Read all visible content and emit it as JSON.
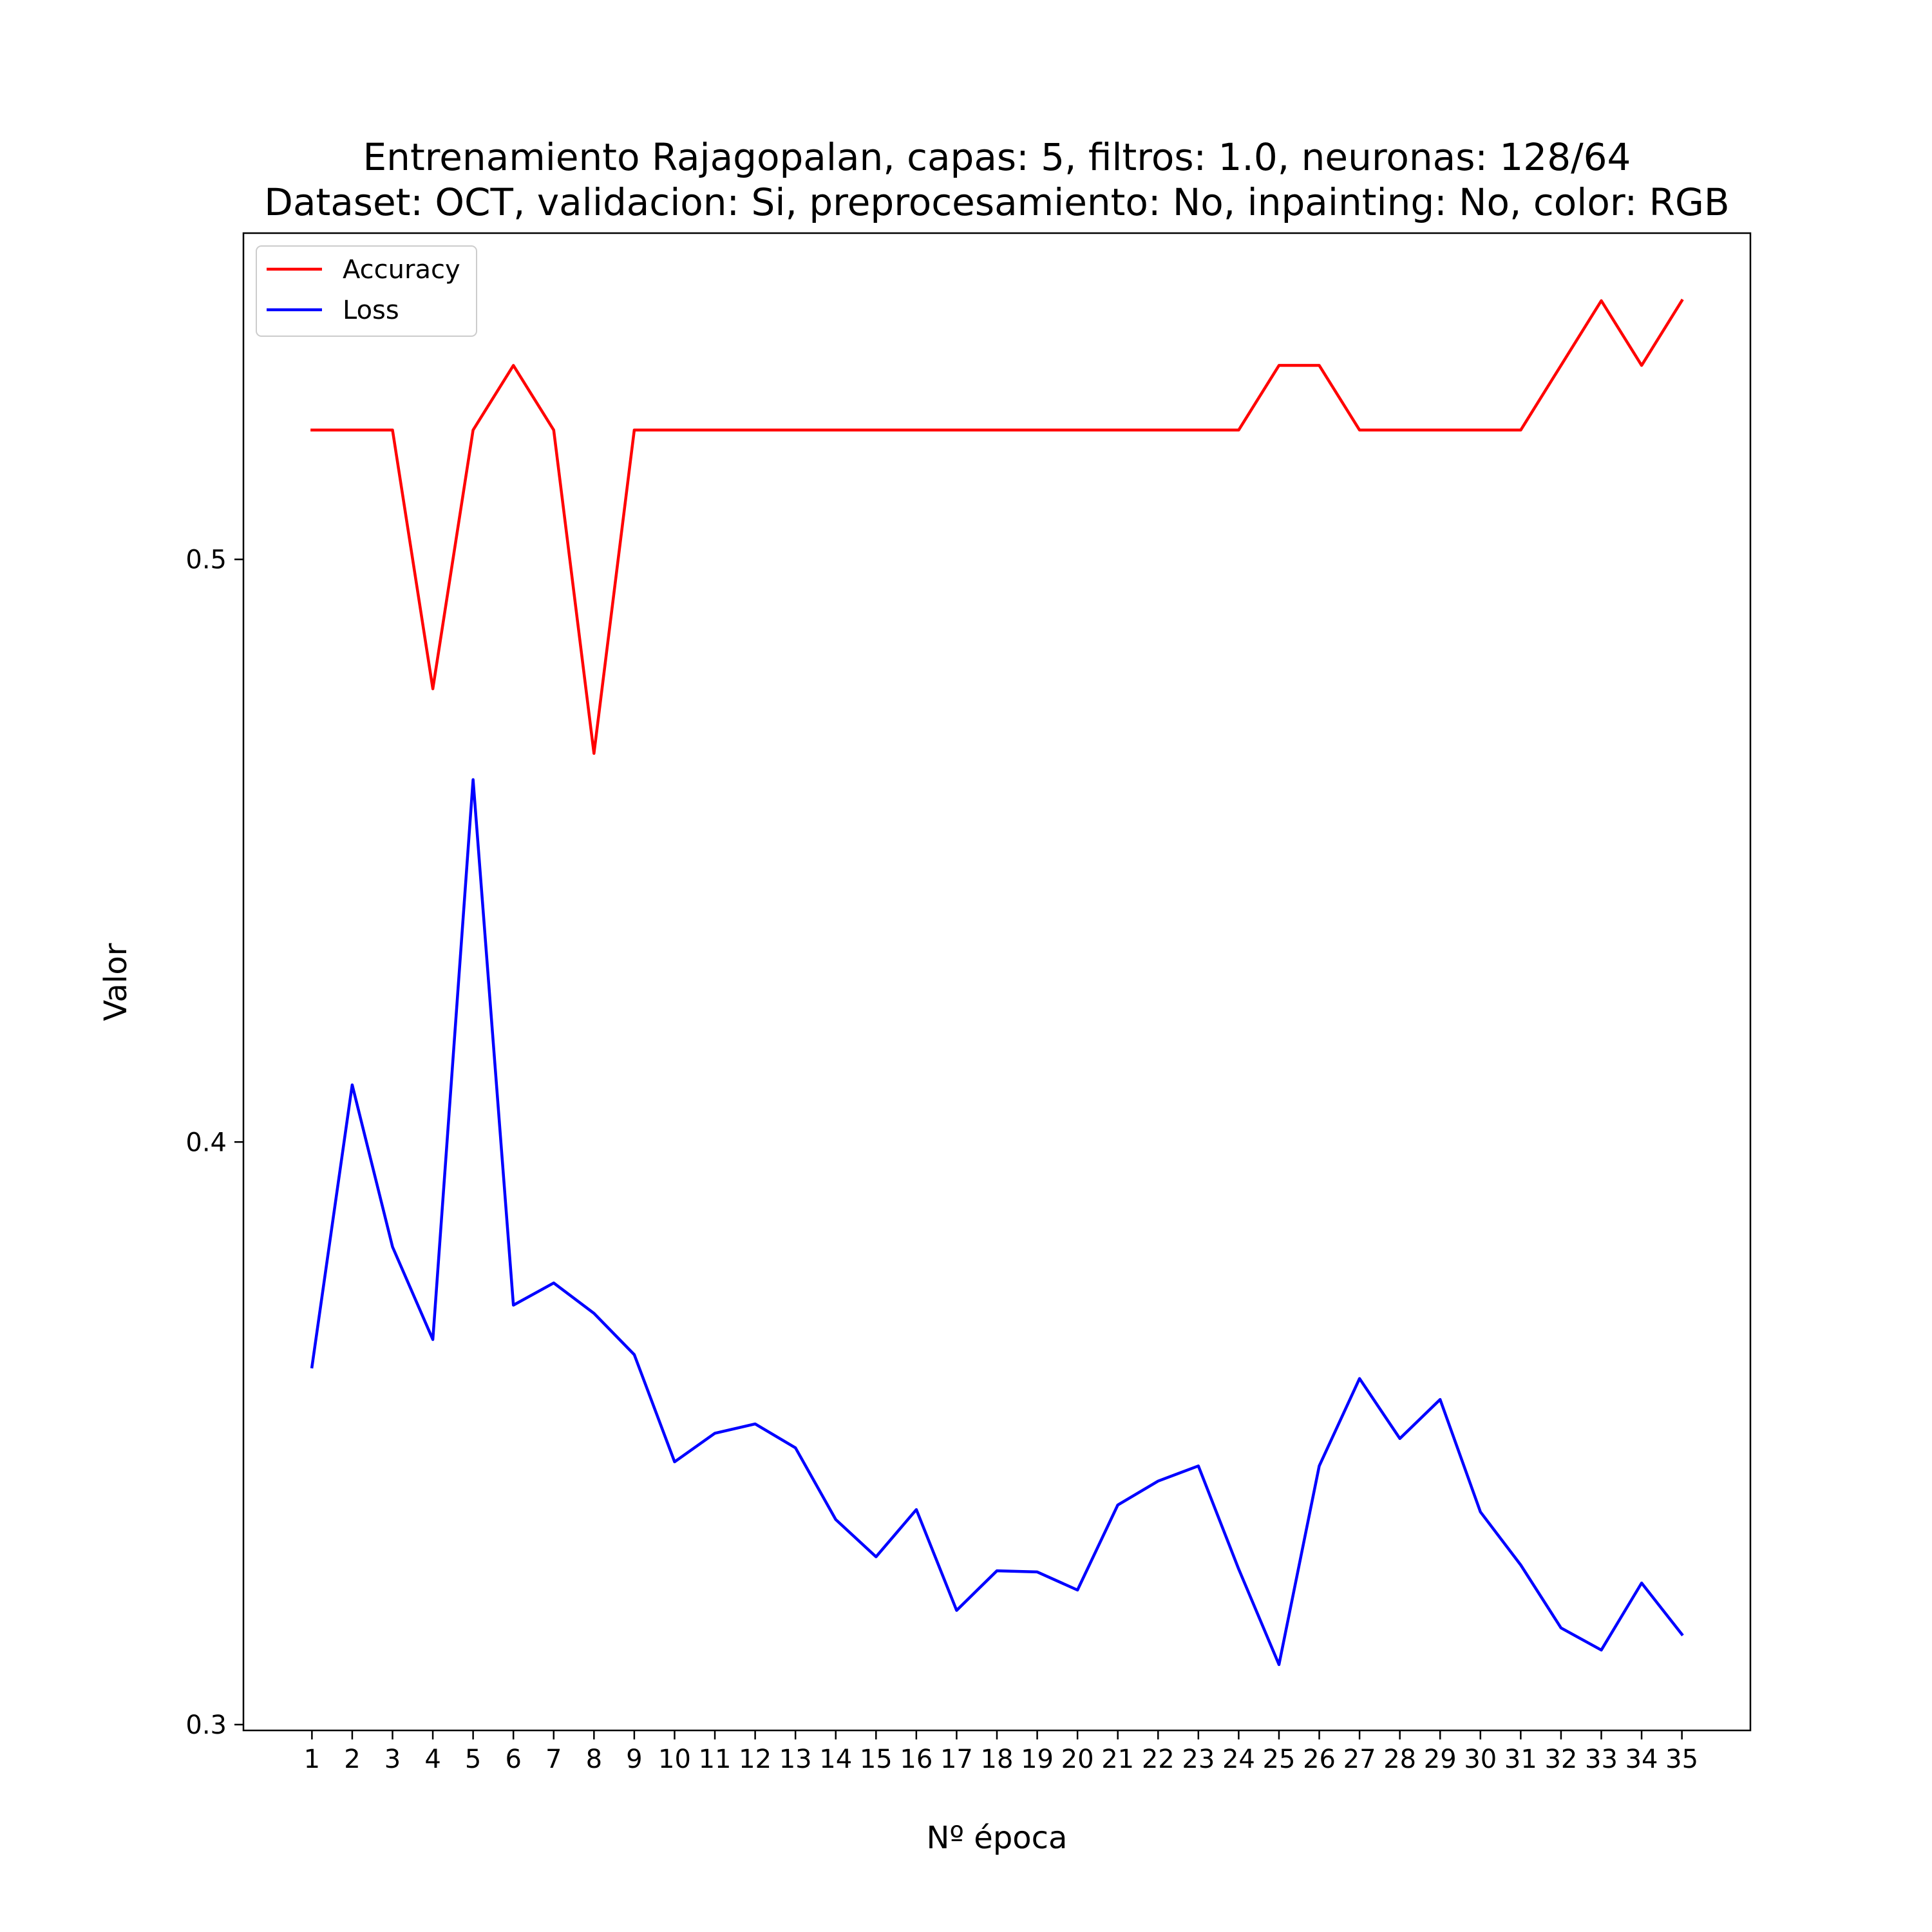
{
  "chart_data": {
    "type": "line",
    "title": "Entrenamiento Rajagopalan, capas: 5, filtros: 1.0, neuronas: 128/64",
    "subtitle": "Dataset: OCT, validacion: Si, preprocesamiento: No, inpainting: No, color: RGB",
    "xlabel": "Nº época",
    "ylabel": "Valor",
    "x": [
      1,
      2,
      3,
      4,
      5,
      6,
      7,
      8,
      9,
      10,
      11,
      12,
      13,
      14,
      15,
      16,
      17,
      18,
      19,
      20,
      21,
      22,
      23,
      24,
      25,
      26,
      27,
      28,
      29,
      30,
      31,
      32,
      33,
      34,
      35
    ],
    "x_tick_labels": [
      "1",
      "2",
      "3",
      "4",
      "5",
      "6",
      "7",
      "8",
      "9",
      "10",
      "11",
      "12",
      "13",
      "14",
      "15",
      "16",
      "17",
      "18",
      "19",
      "20",
      "21",
      "22",
      "23",
      "24",
      "25",
      "26",
      "27",
      "28",
      "29",
      "30",
      "31",
      "32",
      "33",
      "34",
      "35"
    ],
    "y_ticks": [
      0.3,
      0.4,
      0.5
    ],
    "y_tick_labels": [
      "0.3",
      "0.4",
      "0.5"
    ],
    "xlim": [
      -0.7,
      36.7
    ],
    "ylim": [
      0.299,
      0.556
    ],
    "grid": false,
    "legend_position": "top-left",
    "series": [
      {
        "name": "Accuracy",
        "color": "#ff0000",
        "values": [
          0.5222,
          0.5222,
          0.5222,
          0.4778,
          0.5222,
          0.5333,
          0.5222,
          0.4667,
          0.5222,
          0.5222,
          0.5222,
          0.5222,
          0.5222,
          0.5222,
          0.5222,
          0.5222,
          0.5222,
          0.5222,
          0.5222,
          0.5222,
          0.5222,
          0.5222,
          0.5222,
          0.5222,
          0.5333,
          0.5333,
          0.5222,
          0.5222,
          0.5222,
          0.5222,
          0.5222,
          0.5333,
          0.5444,
          0.5333,
          0.5444
        ]
      },
      {
        "name": "Loss",
        "color": "#0000ff",
        "values": [
          0.3614,
          0.4098,
          0.382,
          0.3661,
          0.4622,
          0.372,
          0.3758,
          0.3706,
          0.3635,
          0.3451,
          0.35,
          0.3516,
          0.3475,
          0.3352,
          0.3288,
          0.3369,
          0.3196,
          0.3264,
          0.3262,
          0.3231,
          0.3377,
          0.3418,
          0.3444,
          0.3267,
          0.3103,
          0.3444,
          0.3594,
          0.3491,
          0.3558,
          0.3365,
          0.3274,
          0.3166,
          0.3128,
          0.3243,
          0.3155
        ]
      }
    ]
  }
}
